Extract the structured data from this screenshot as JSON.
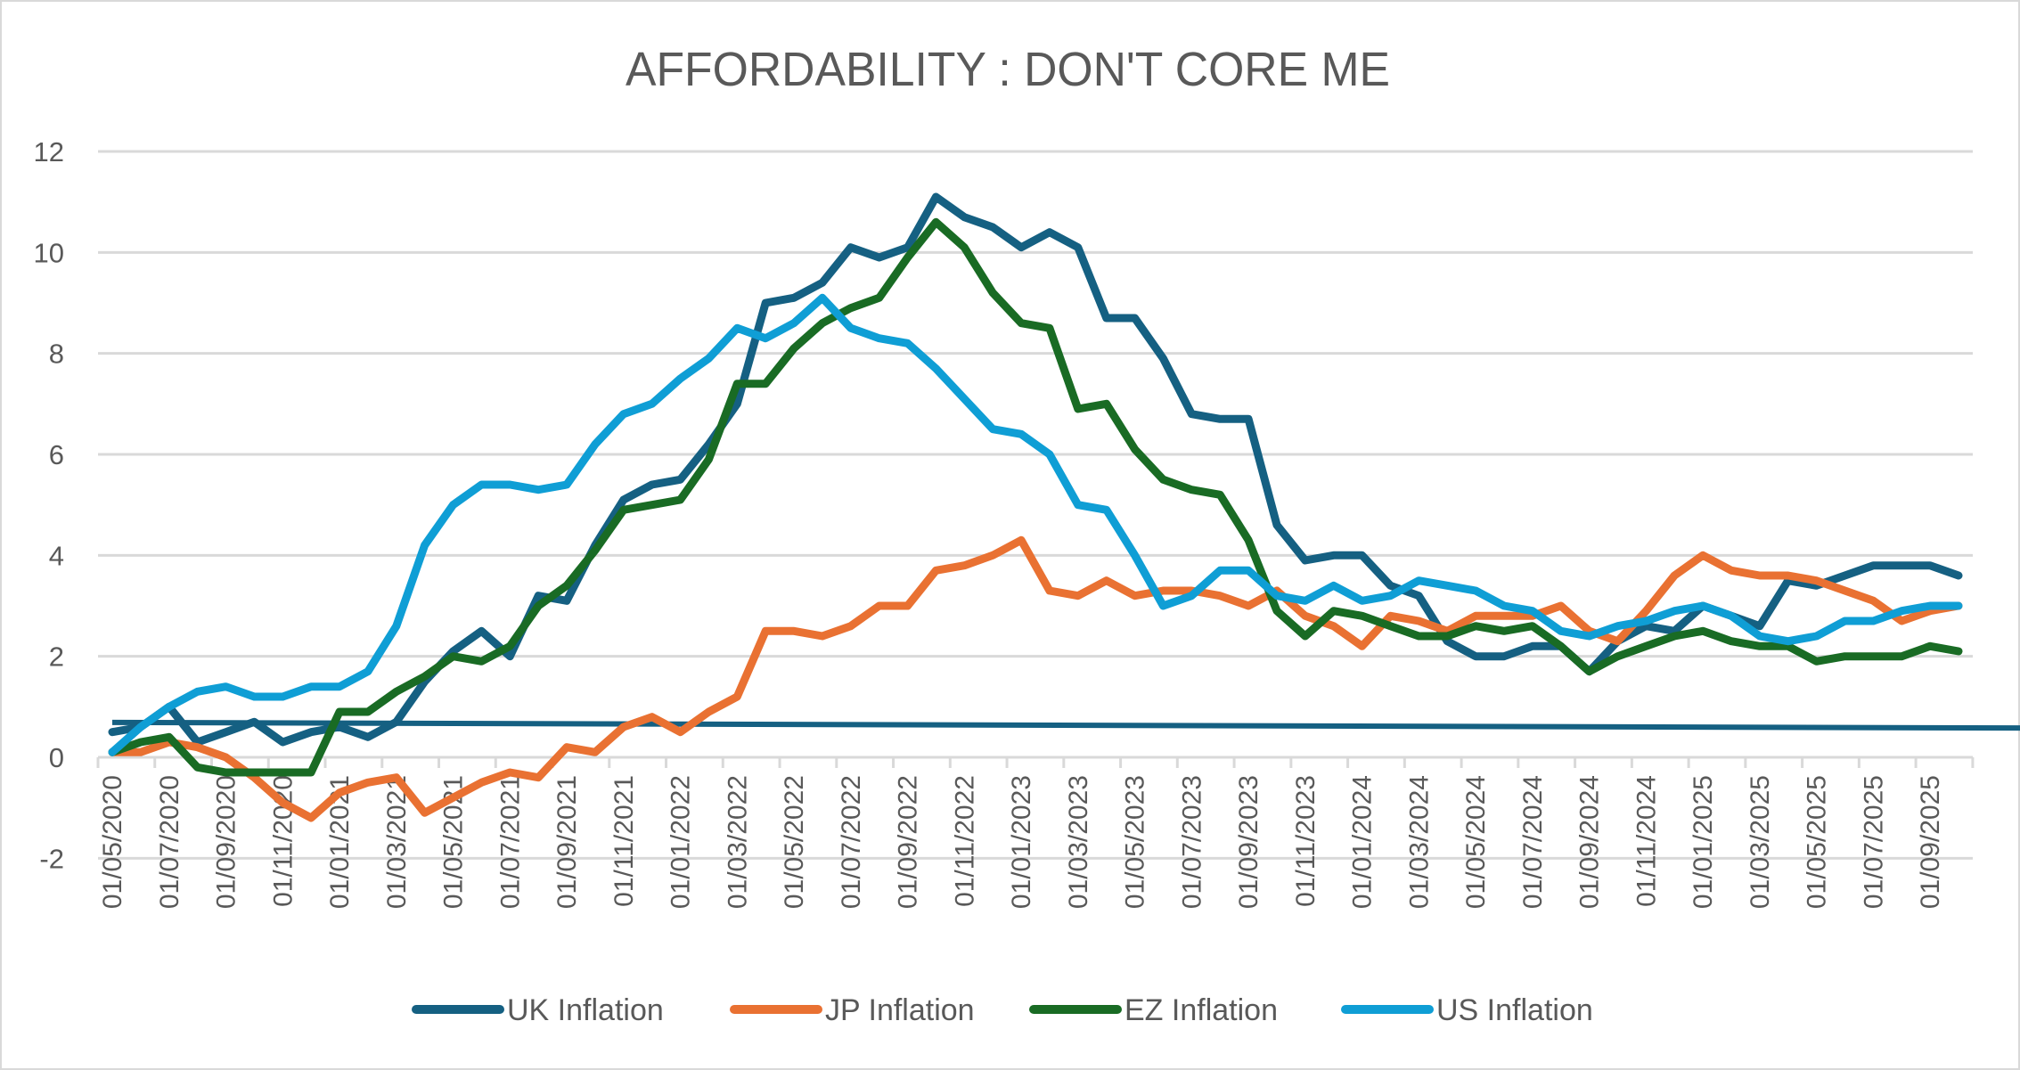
{
  "chart_data": {
    "type": "line",
    "title": "AFFORDABILITY : DON'T CORE ME",
    "xlabel": "",
    "ylabel": "",
    "ylim": [
      -2,
      12
    ],
    "yticks": [
      "-2",
      "0",
      "2",
      "4",
      "6",
      "8",
      "10",
      "12"
    ],
    "grid": true,
    "legend_position": "bottom",
    "categories": [
      "01/05/2020",
      "01/06/2020",
      "01/07/2020",
      "01/08/2020",
      "01/09/2020",
      "01/10/2020",
      "01/11/2020",
      "01/12/2020",
      "01/01/2021",
      "01/02/2021",
      "01/03/2021",
      "01/04/2021",
      "01/05/2021",
      "01/06/2021",
      "01/07/2021",
      "01/08/2021",
      "01/09/2021",
      "01/10/2021",
      "01/11/2021",
      "01/12/2021",
      "01/01/2022",
      "01/02/2022",
      "01/03/2022",
      "01/04/2022",
      "01/05/2022",
      "01/06/2022",
      "01/07/2022",
      "01/08/2022",
      "01/09/2022",
      "01/10/2022",
      "01/11/2022",
      "01/12/2022",
      "01/01/2023",
      "01/02/2023",
      "01/03/2023",
      "01/04/2023",
      "01/05/2023",
      "01/06/2023",
      "01/07/2023",
      "01/08/2023",
      "01/09/2023",
      "01/10/2023",
      "01/11/2023",
      "01/12/2023",
      "01/01/2024",
      "01/02/2024",
      "01/03/2024",
      "01/04/2024",
      "01/05/2024",
      "01/06/2024",
      "01/07/2024",
      "01/08/2024",
      "01/09/2024",
      "01/10/2024",
      "01/11/2024",
      "01/12/2024",
      "01/01/2025",
      "01/02/2025",
      "01/03/2025",
      "01/04/2025",
      "01/05/2025",
      "01/06/2025",
      "01/07/2025",
      "01/08/2025",
      "01/09/2025",
      "01/10/2025"
    ],
    "tick_labels_every": 2,
    "series": [
      {
        "name": "UK Inflation",
        "color": "#156082",
        "values": [
          0.5,
          0.6,
          1.0,
          0.3,
          0.5,
          0.7,
          0.3,
          0.5,
          0.6,
          0.4,
          0.7,
          1.5,
          2.1,
          2.5,
          2.0,
          3.2,
          3.1,
          4.2,
          5.1,
          5.4,
          5.5,
          6.2,
          7.0,
          9.0,
          9.1,
          9.4,
          10.1,
          9.9,
          10.1,
          11.1,
          10.7,
          10.5,
          10.1,
          10.4,
          10.1,
          8.7,
          8.7,
          7.9,
          6.8,
          6.7,
          6.7,
          4.6,
          3.9,
          4.0,
          4.0,
          3.4,
          3.2,
          2.3,
          2.0,
          2.0,
          2.2,
          2.2,
          1.7,
          2.3,
          2.6,
          2.5,
          3.0,
          2.8,
          2.6,
          3.5,
          3.4,
          3.6,
          3.8,
          3.8,
          3.8,
          3.6
        ]
      },
      {
        "name": "JP Inflation",
        "color": "#E97132",
        "values": [
          0.1,
          0.1,
          0.3,
          0.2,
          0.0,
          -0.4,
          -0.9,
          -1.2,
          -0.7,
          -0.5,
          -0.4,
          -1.1,
          -0.8,
          -0.5,
          -0.3,
          -0.4,
          0.2,
          0.1,
          0.6,
          0.8,
          0.5,
          0.9,
          1.2,
          2.5,
          2.5,
          2.4,
          2.6,
          3.0,
          3.0,
          3.7,
          3.8,
          4.0,
          4.3,
          3.3,
          3.2,
          3.5,
          3.2,
          3.3,
          3.3,
          3.2,
          3.0,
          3.3,
          2.8,
          2.6,
          2.2,
          2.8,
          2.7,
          2.5,
          2.8,
          2.8,
          2.8,
          3.0,
          2.5,
          2.3,
          2.9,
          3.6,
          4.0,
          3.7,
          3.6,
          3.6,
          3.5,
          3.3,
          3.1,
          2.7,
          2.9,
          3.0
        ]
      },
      {
        "name": "EZ Inflation",
        "color": "#196B24",
        "values": [
          0.1,
          0.3,
          0.4,
          -0.2,
          -0.3,
          -0.3,
          -0.3,
          -0.3,
          0.9,
          0.9,
          1.3,
          1.6,
          2.0,
          1.9,
          2.2,
          3.0,
          3.4,
          4.1,
          4.9,
          5.0,
          5.1,
          5.9,
          7.4,
          7.4,
          8.1,
          8.6,
          8.9,
          9.1,
          9.9,
          10.6,
          10.1,
          9.2,
          8.6,
          8.5,
          6.9,
          7.0,
          6.1,
          5.5,
          5.3,
          5.2,
          4.3,
          2.9,
          2.4,
          2.9,
          2.8,
          2.6,
          2.4,
          2.4,
          2.6,
          2.5,
          2.6,
          2.2,
          1.7,
          2.0,
          2.2,
          2.4,
          2.5,
          2.3,
          2.2,
          2.2,
          1.9,
          2.0,
          2.0,
          2.0,
          2.2,
          2.1
        ]
      },
      {
        "name": "US Inflation",
        "color": "#0F9ED5",
        "values": [
          0.1,
          0.6,
          1.0,
          1.3,
          1.4,
          1.2,
          1.2,
          1.4,
          1.4,
          1.7,
          2.6,
          4.2,
          5.0,
          5.4,
          5.4,
          5.3,
          5.4,
          6.2,
          6.8,
          7.0,
          7.5,
          7.9,
          8.5,
          8.3,
          8.6,
          9.1,
          8.5,
          8.3,
          8.2,
          7.7,
          7.1,
          6.5,
          6.4,
          6.0,
          5.0,
          4.9,
          4.0,
          3.0,
          3.2,
          3.7,
          3.7,
          3.2,
          3.1,
          3.4,
          3.1,
          3.2,
          3.5,
          3.4,
          3.3,
          3.0,
          2.9,
          2.5,
          2.4,
          2.6,
          2.7,
          2.9,
          3.0,
          2.8,
          2.4,
          2.3,
          2.4,
          2.7,
          2.7,
          2.9,
          3.0,
          3.0
        ]
      }
    ],
    "reference_line": {
      "color": "#156082",
      "start_value": 0.69,
      "end_value": 0.58,
      "in_legend": false
    }
  }
}
